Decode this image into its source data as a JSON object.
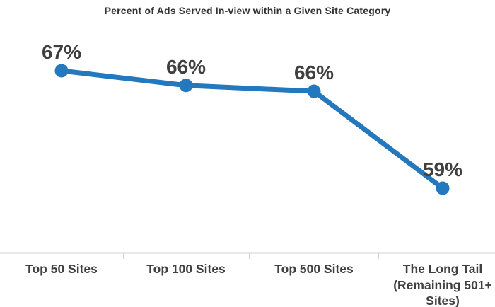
{
  "page": {
    "background_color": "#FFFFFF"
  },
  "chart_data": {
    "type": "line",
    "title": "Percent of Ads Served In-view within a Given Site Category",
    "categories": [
      "Top 50 Sites",
      "Top 100 Sites",
      "Top 500 Sites",
      "The Long Tail (Remaining 501+ Sites)"
    ],
    "series": [
      {
        "name": "percent-in-view",
        "values": [
          67,
          66,
          65.6,
          59
        ],
        "point_labels": [
          "67%",
          "66%",
          "66%",
          "59%"
        ],
        "color": "#2378BE"
      }
    ],
    "xlabel": "",
    "ylabel": "",
    "legend_position": "none",
    "grid": false,
    "y_axis": "hidden",
    "x_axis_line": "visible",
    "axis_line_color": "#D3D3D3",
    "data_label_color": "#3F3F3F",
    "category_label_color": "#404040",
    "title_color": "#333333"
  }
}
